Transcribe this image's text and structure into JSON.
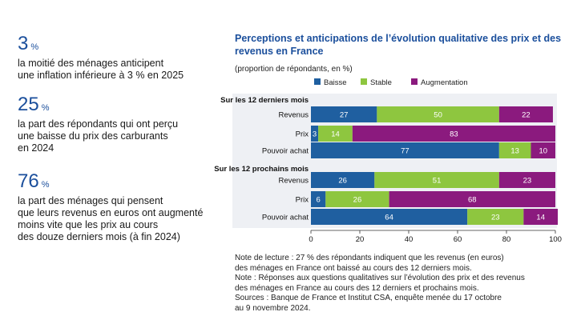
{
  "stats": [
    {
      "value": "3",
      "unit": "%",
      "desc": [
        "la moitié des ménages anticipent",
        "une inflation inférieure à 3 % en 2025"
      ]
    },
    {
      "value": "25",
      "unit": "%",
      "desc": [
        "la part des répondants qui ont perçu",
        "une baisse du prix des carburants",
        "en 2024"
      ]
    },
    {
      "value": "76",
      "unit": "%",
      "desc": [
        "la part des ménages qui pensent",
        "que leurs revenus en euros ont augmenté",
        "moins vite que les prix au cours",
        "des douze derniers mois (à fin 2024)"
      ]
    }
  ],
  "notes": [
    "Note de lecture : 27 % des répondants indiquent que les revenus (en euros)",
    "des ménages en France ont baissé au cours des 12 derniers mois.",
    "Note : Réponses aux questions qualitatives sur l’évolution des prix et des revenus",
    "des ménages en France au cours des 12 derniers et prochains mois.",
    "Sources : Banque de France et Institut CSA, enquête menée du 17 octobre",
    "au 9 novembre 2024."
  ],
  "chart_data": {
    "type": "bar",
    "orientation": "horizontal",
    "stacked": true,
    "title": "Perceptions et anticipations de l’évolution qualitative des prix et des revenus en France",
    "subtitle": "(proportion de répondants, en %)",
    "xlim": [
      0,
      100
    ],
    "xticks": [
      0,
      20,
      40,
      60,
      80,
      100
    ],
    "legend_position": "top",
    "series": [
      {
        "name": "Baisse",
        "color": "#1f5fa0"
      },
      {
        "name": "Stable",
        "color": "#8ec63f"
      },
      {
        "name": "Augmentation",
        "color": "#8b1a7e"
      }
    ],
    "groups": [
      {
        "label": "Sur les 12 derniers mois",
        "rows": [
          {
            "label": "Revenus",
            "values": [
              27,
              50,
              22
            ]
          },
          {
            "label": "Prix",
            "values": [
              3,
              14,
              83
            ]
          },
          {
            "label": "Pouvoir achat",
            "values": [
              77,
              13,
              10
            ]
          }
        ]
      },
      {
        "label": "Sur les 12 prochains mois",
        "rows": [
          {
            "label": "Revenus",
            "values": [
              26,
              51,
              23
            ]
          },
          {
            "label": "Prix",
            "values": [
              6,
              26,
              68
            ]
          },
          {
            "label": "Pouvoir achat",
            "values": [
              64,
              23,
              14
            ]
          }
        ]
      }
    ]
  }
}
